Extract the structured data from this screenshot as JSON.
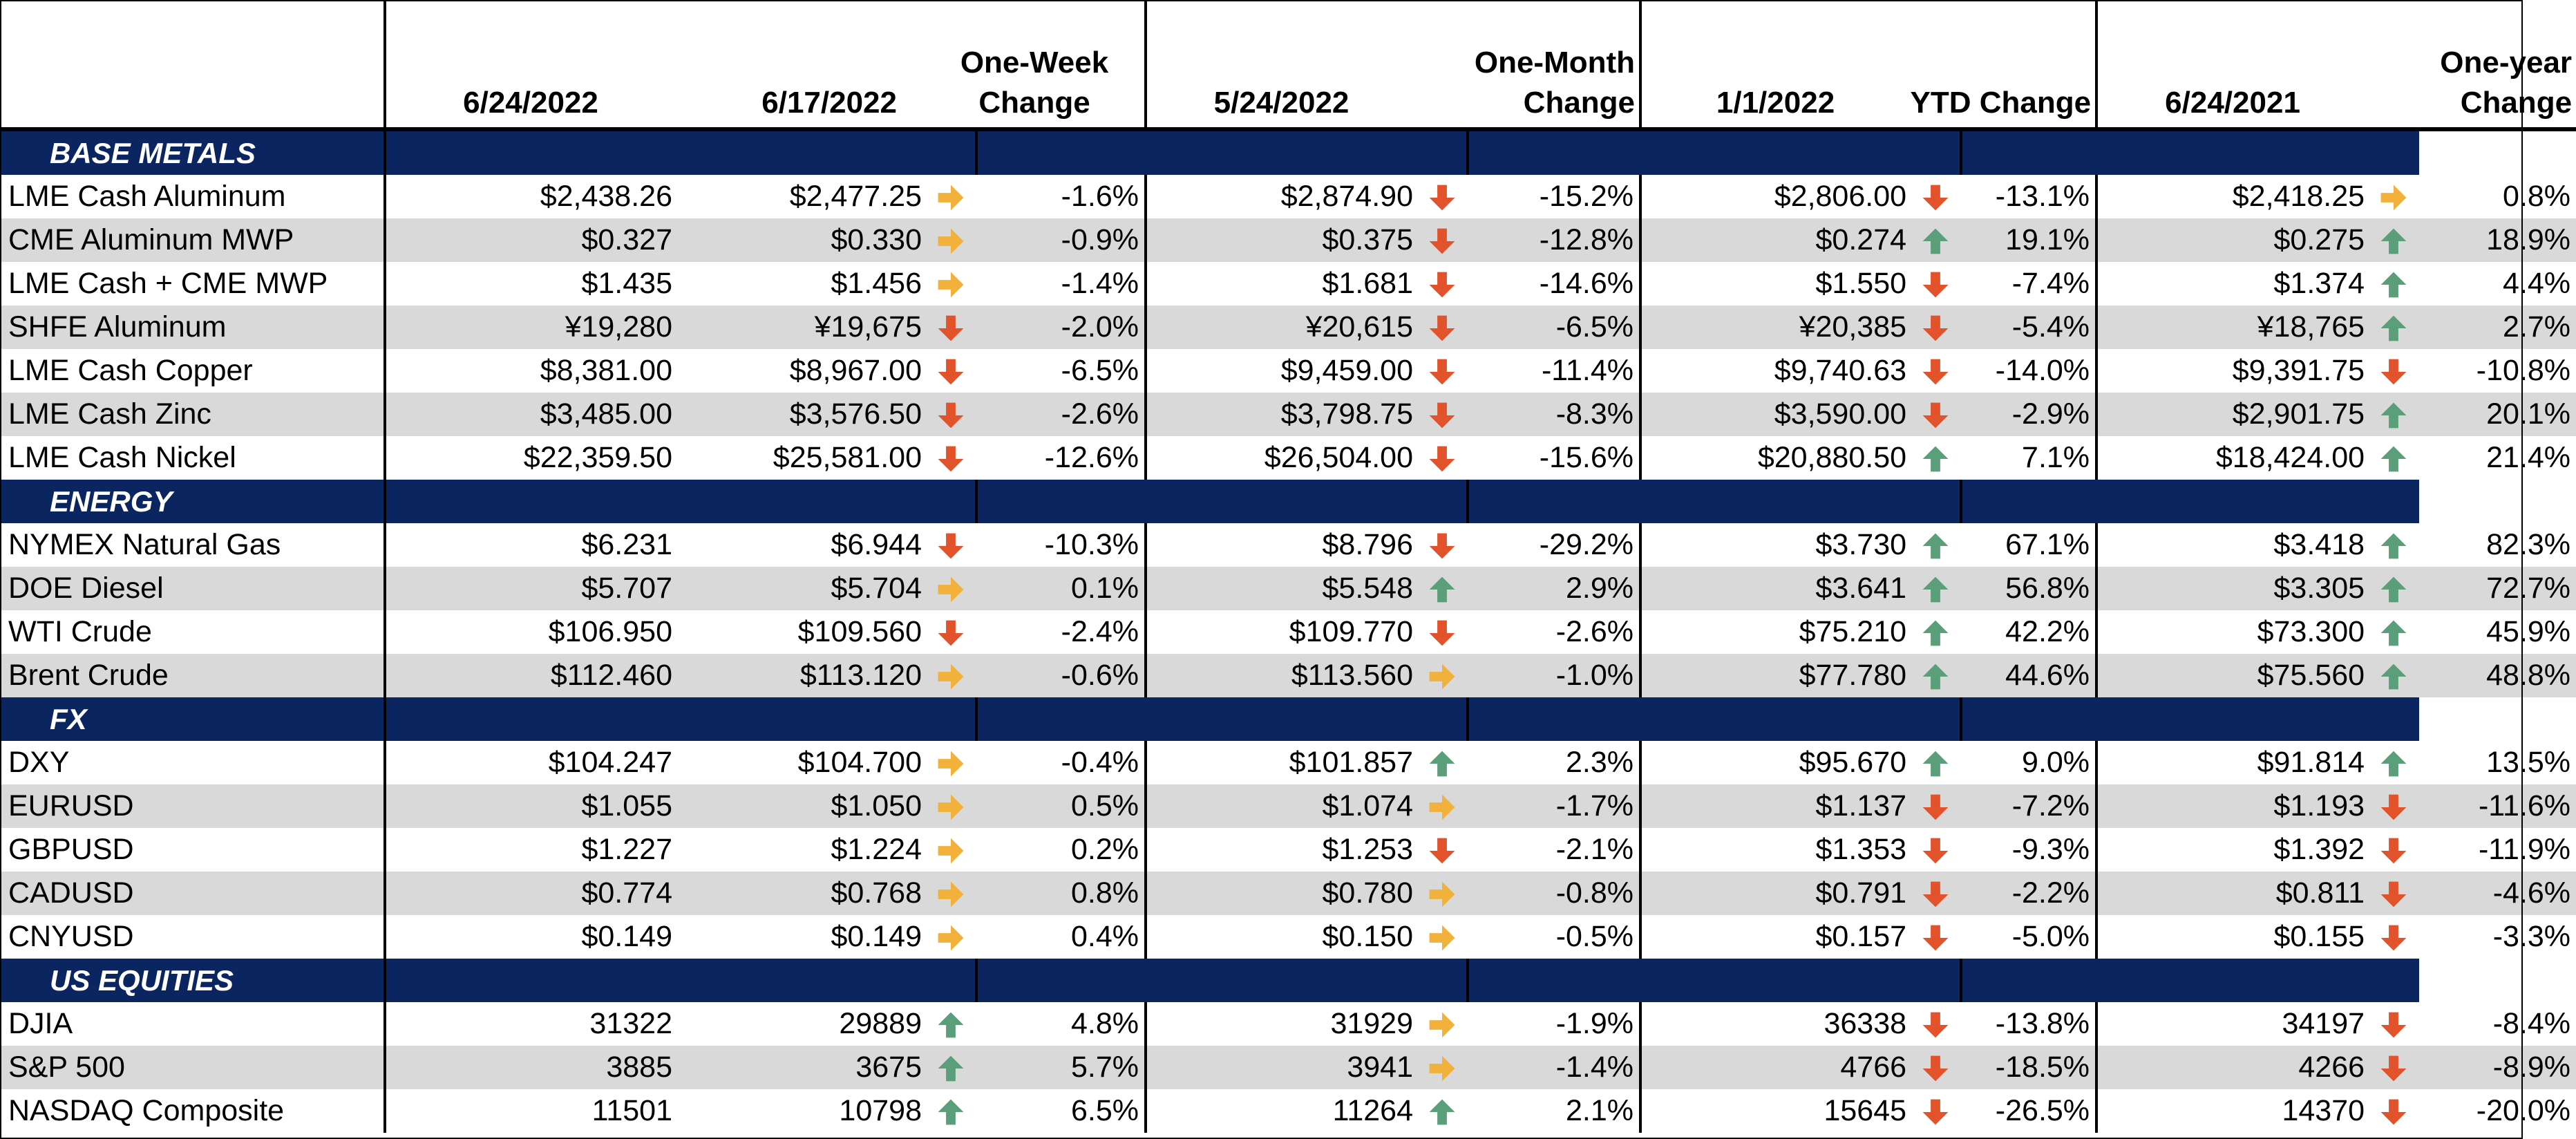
{
  "colors": {
    "section_bg": "#0b2560",
    "shade": "#d9d9d9",
    "up": "#5b9e7a",
    "down": "#e2532c",
    "flat": "#f2b13b"
  },
  "header": {
    "col1": "6/24/2022",
    "col2": "6/17/2022",
    "col3": "One-Week Change",
    "col4": "5/24/2022",
    "col5": "One-Month Change",
    "col6": "1/1/2022",
    "col7": "YTD Change",
    "col8": "6/24/2021",
    "col9": "One-year Change"
  },
  "sections": [
    {
      "title": "BASE METALS",
      "rows": [
        {
          "name": "LME Cash Aluminum",
          "v1": "$2,438.26",
          "v2": "$2,477.25",
          "a1": "flat",
          "c1": "-1.6%",
          "v3": "$2,874.90",
          "a2": "down",
          "c2": "-15.2%",
          "v4": "$2,806.00",
          "a3": "down",
          "c3": "-13.1%",
          "v5": "$2,418.25",
          "a4": "flat",
          "c4": "0.8%"
        },
        {
          "name": "CME Aluminum MWP",
          "v1": "$0.327",
          "v2": "$0.330",
          "a1": "flat",
          "c1": "-0.9%",
          "v3": "$0.375",
          "a2": "down",
          "c2": "-12.8%",
          "v4": "$0.274",
          "a3": "up",
          "c3": "19.1%",
          "v5": "$0.275",
          "a4": "up",
          "c4": "18.9%"
        },
        {
          "name": "LME Cash + CME MWP",
          "v1": "$1.435",
          "v2": "$1.456",
          "a1": "flat",
          "c1": "-1.4%",
          "v3": "$1.681",
          "a2": "down",
          "c2": "-14.6%",
          "v4": "$1.550",
          "a3": "down",
          "c3": "-7.4%",
          "v5": "$1.374",
          "a4": "up",
          "c4": "4.4%"
        },
        {
          "name": "SHFE Aluminum",
          "v1": "¥19,280",
          "v2": "¥19,675",
          "a1": "down",
          "c1": "-2.0%",
          "v3": "¥20,615",
          "a2": "down",
          "c2": "-6.5%",
          "v4": "¥20,385",
          "a3": "down",
          "c3": "-5.4%",
          "v5": "¥18,765",
          "a4": "up",
          "c4": "2.7%"
        },
        {
          "name": "LME Cash Copper",
          "v1": "$8,381.00",
          "v2": "$8,967.00",
          "a1": "down",
          "c1": "-6.5%",
          "v3": "$9,459.00",
          "a2": "down",
          "c2": "-11.4%",
          "v4": "$9,740.63",
          "a3": "down",
          "c3": "-14.0%",
          "v5": "$9,391.75",
          "a4": "down",
          "c4": "-10.8%"
        },
        {
          "name": "LME Cash Zinc",
          "v1": "$3,485.00",
          "v2": "$3,576.50",
          "a1": "down",
          "c1": "-2.6%",
          "v3": "$3,798.75",
          "a2": "down",
          "c2": "-8.3%",
          "v4": "$3,590.00",
          "a3": "down",
          "c3": "-2.9%",
          "v5": "$2,901.75",
          "a4": "up",
          "c4": "20.1%"
        },
        {
          "name": "LME Cash Nickel",
          "v1": "$22,359.50",
          "v2": "$25,581.00",
          "a1": "down",
          "c1": "-12.6%",
          "v3": "$26,504.00",
          "a2": "down",
          "c2": "-15.6%",
          "v4": "$20,880.50",
          "a3": "up",
          "c3": "7.1%",
          "v5": "$18,424.00",
          "a4": "up",
          "c4": "21.4%"
        }
      ]
    },
    {
      "title": "ENERGY",
      "rows": [
        {
          "name": "NYMEX Natural Gas",
          "v1": "$6.231",
          "v2": "$6.944",
          "a1": "down",
          "c1": "-10.3%",
          "v3": "$8.796",
          "a2": "down",
          "c2": "-29.2%",
          "v4": "$3.730",
          "a3": "up",
          "c3": "67.1%",
          "v5": "$3.418",
          "a4": "up",
          "c4": "82.3%"
        },
        {
          "name": "DOE Diesel",
          "v1": "$5.707",
          "v2": "$5.704",
          "a1": "flat",
          "c1": "0.1%",
          "v3": "$5.548",
          "a2": "up",
          "c2": "2.9%",
          "v4": "$3.641",
          "a3": "up",
          "c3": "56.8%",
          "v5": "$3.305",
          "a4": "up",
          "c4": "72.7%"
        },
        {
          "name": "WTI Crude",
          "v1": "$106.950",
          "v2": "$109.560",
          "a1": "down",
          "c1": "-2.4%",
          "v3": "$109.770",
          "a2": "down",
          "c2": "-2.6%",
          "v4": "$75.210",
          "a3": "up",
          "c3": "42.2%",
          "v5": "$73.300",
          "a4": "up",
          "c4": "45.9%"
        },
        {
          "name": "Brent Crude",
          "v1": "$112.460",
          "v2": "$113.120",
          "a1": "flat",
          "c1": "-0.6%",
          "v3": "$113.560",
          "a2": "flat",
          "c2": "-1.0%",
          "v4": "$77.780",
          "a3": "up",
          "c3": "44.6%",
          "v5": "$75.560",
          "a4": "up",
          "c4": "48.8%"
        }
      ]
    },
    {
      "title": "FX",
      "rows": [
        {
          "name": "DXY",
          "v1": "$104.247",
          "v2": "$104.700",
          "a1": "flat",
          "c1": "-0.4%",
          "v3": "$101.857",
          "a2": "up",
          "c2": "2.3%",
          "v4": "$95.670",
          "a3": "up",
          "c3": "9.0%",
          "v5": "$91.814",
          "a4": "up",
          "c4": "13.5%"
        },
        {
          "name": "EURUSD",
          "v1": "$1.055",
          "v2": "$1.050",
          "a1": "flat",
          "c1": "0.5%",
          "v3": "$1.074",
          "a2": "flat",
          "c2": "-1.7%",
          "v4": "$1.137",
          "a3": "down",
          "c3": "-7.2%",
          "v5": "$1.193",
          "a4": "down",
          "c4": "-11.6%"
        },
        {
          "name": "GBPUSD",
          "v1": "$1.227",
          "v2": "$1.224",
          "a1": "flat",
          "c1": "0.2%",
          "v3": "$1.253",
          "a2": "down",
          "c2": "-2.1%",
          "v4": "$1.353",
          "a3": "down",
          "c3": "-9.3%",
          "v5": "$1.392",
          "a4": "down",
          "c4": "-11.9%"
        },
        {
          "name": "CADUSD",
          "v1": "$0.774",
          "v2": "$0.768",
          "a1": "flat",
          "c1": "0.8%",
          "v3": "$0.780",
          "a2": "flat",
          "c2": "-0.8%",
          "v4": "$0.791",
          "a3": "down",
          "c3": "-2.2%",
          "v5": "$0.811",
          "a4": "down",
          "c4": "-4.6%"
        },
        {
          "name": "CNYUSD",
          "v1": "$0.149",
          "v2": "$0.149",
          "a1": "flat",
          "c1": "0.4%",
          "v3": "$0.150",
          "a2": "flat",
          "c2": "-0.5%",
          "v4": "$0.157",
          "a3": "down",
          "c3": "-5.0%",
          "v5": "$0.155",
          "a4": "down",
          "c4": "-3.3%"
        }
      ]
    },
    {
      "title": "US EQUITIES",
      "rows": [
        {
          "name": "DJIA",
          "v1": "31322",
          "v2": "29889",
          "a1": "up",
          "c1": "4.8%",
          "v3": "31929",
          "a2": "flat",
          "c2": "-1.9%",
          "v4": "36338",
          "a3": "down",
          "c3": "-13.8%",
          "v5": "34197",
          "a4": "down",
          "c4": "-8.4%"
        },
        {
          "name": "S&P 500",
          "v1": "3885",
          "v2": "3675",
          "a1": "up",
          "c1": "5.7%",
          "v3": "3941",
          "a2": "flat",
          "c2": "-1.4%",
          "v4": "4766",
          "a3": "down",
          "c3": "-18.5%",
          "v5": "4266",
          "a4": "down",
          "c4": "-8.9%"
        },
        {
          "name": "NASDAQ Composite",
          "v1": "11501",
          "v2": "10798",
          "a1": "up",
          "c1": "6.5%",
          "v3": "11264",
          "a2": "up",
          "c2": "2.1%",
          "v4": "15645",
          "a3": "down",
          "c3": "-26.5%",
          "v5": "14370",
          "a4": "down",
          "c4": "-20.0%"
        }
      ]
    }
  ]
}
